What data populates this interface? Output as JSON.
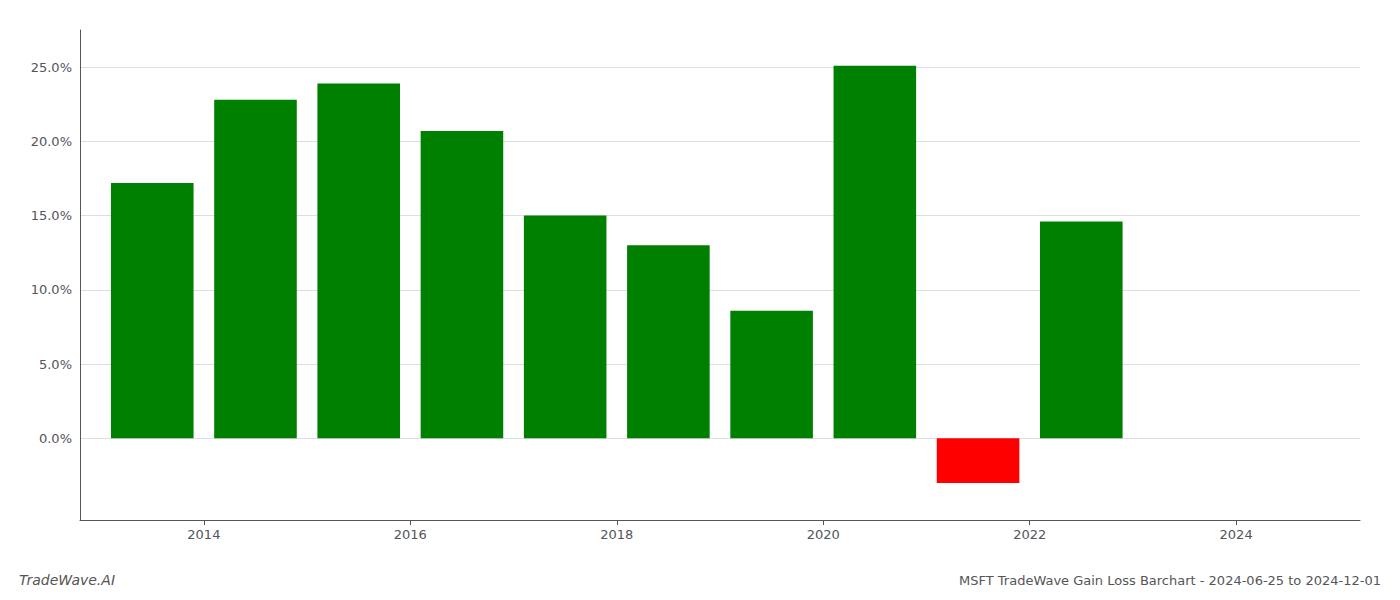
{
  "chart_data": {
    "type": "bar",
    "title": "MSFT TradeWave Gain Loss Barchart - 2024-06-25 to 2024-12-01",
    "annotations": [
      "TradeWave.AI"
    ],
    "x": [
      2013.5,
      2014.5,
      2015.5,
      2016.5,
      2017.5,
      2018.5,
      2019.5,
      2020.5,
      2021.5,
      2022.5
    ],
    "values": [
      0.172,
      0.228,
      0.239,
      0.207,
      0.15,
      0.13,
      0.086,
      0.251,
      -0.03,
      0.146
    ],
    "colors": [
      "#008000",
      "#008000",
      "#008000",
      "#008000",
      "#008000",
      "#008000",
      "#008000",
      "#008000",
      "#ff0000",
      "#008000"
    ],
    "xlim": [
      2012.8,
      2025.2
    ],
    "xticks": [
      2014,
      2016,
      2018,
      2020,
      2022,
      2024
    ],
    "ylim": [
      -0.055,
      0.275
    ],
    "yticks": [
      {
        "value": 0.0,
        "label": "0.0%"
      },
      {
        "value": 0.05,
        "label": "5.0%"
      },
      {
        "value": 0.1,
        "label": "10.0%"
      },
      {
        "value": 0.15,
        "label": "15.0%"
      },
      {
        "value": 0.2,
        "label": "20.0%"
      },
      {
        "value": 0.25,
        "label": "25.0%"
      }
    ],
    "grid": true
  }
}
